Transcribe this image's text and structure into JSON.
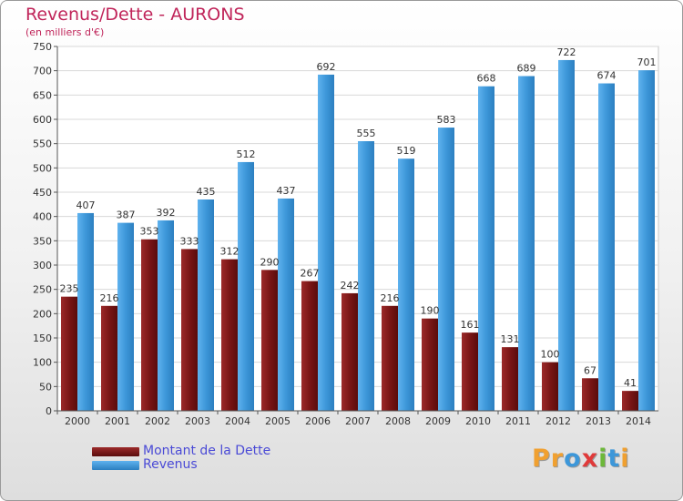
{
  "title": "Revenus/Dette - AURONS",
  "subtitle": "(en milliers d'€)",
  "colors": {
    "dette": "#7a1616",
    "revenus": "#3d97d9",
    "title": "#c0255a",
    "legend_text": "#4a4ad6"
  },
  "legend": {
    "items": [
      {
        "label": "Montant de la Dette",
        "color": "#7a1616"
      },
      {
        "label": "Revenus",
        "color": "#3d97d9"
      }
    ]
  },
  "logo": {
    "text": "Proxiti",
    "letters": [
      {
        "ch": "P",
        "color": "#f0a030"
      },
      {
        "ch": "r",
        "color": "#f0a030"
      },
      {
        "ch": "o",
        "color": "#3d97d9"
      },
      {
        "ch": "x",
        "color": "#e03a3a"
      },
      {
        "ch": "i",
        "color": "#6db83a"
      },
      {
        "ch": "t",
        "color": "#3d97d9"
      },
      {
        "ch": "i",
        "color": "#f0a030"
      }
    ]
  },
  "chart_data": {
    "type": "bar",
    "title": "Revenus/Dette - AURONS",
    "subtitle": "(en milliers d'€)",
    "categories": [
      "2000",
      "2001",
      "2002",
      "2003",
      "2004",
      "2005",
      "2006",
      "2007",
      "2008",
      "2009",
      "2010",
      "2011",
      "2012",
      "2013",
      "2014"
    ],
    "series": [
      {
        "name": "Montant de la Dette",
        "color": "#7a1616",
        "values": [
          235,
          216,
          353,
          333,
          312,
          290,
          267,
          242,
          216,
          190,
          161,
          131,
          100,
          67,
          41
        ]
      },
      {
        "name": "Revenus",
        "color": "#3d97d9",
        "values": [
          407,
          387,
          392,
          435,
          512,
          437,
          692,
          555,
          519,
          583,
          668,
          689,
          722,
          674,
          701
        ]
      }
    ],
    "yticks": [
      0,
      50,
      100,
      150,
      200,
      250,
      300,
      350,
      400,
      450,
      500,
      550,
      600,
      650,
      700,
      750
    ],
    "ylim": [
      0,
      750
    ],
    "grid": true,
    "legend_position": "bottom-left"
  }
}
